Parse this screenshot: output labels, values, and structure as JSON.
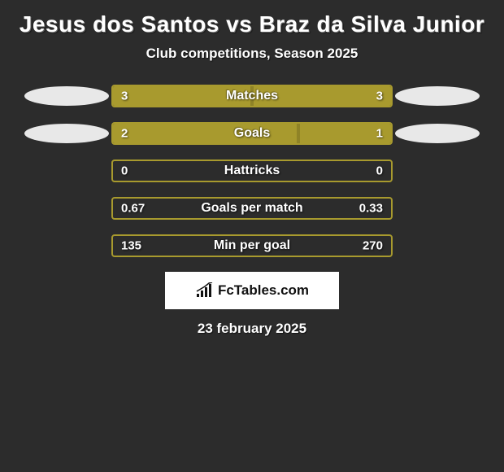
{
  "title": "Jesus dos Santos vs Braz da Silva Junior",
  "subtitle": "Club competitions, Season 2025",
  "footer_date": "23 february 2025",
  "logo_text": "FcTables.com",
  "colors": {
    "background": "#2c2c2c",
    "bar_border": "#a89a2e",
    "bar_fill": "#a89a2e",
    "avatar": "#e8e8e8",
    "text": "#ffffff",
    "logo_bg": "#ffffff",
    "logo_text": "#111111"
  },
  "stats": [
    {
      "label": "Matches",
      "left_value": "3",
      "right_value": "3",
      "left_pct": 50,
      "right_pct": 50,
      "show_left_avatar": true,
      "show_right_avatar": true
    },
    {
      "label": "Goals",
      "left_value": "2",
      "right_value": "1",
      "left_pct": 66.7,
      "right_pct": 33.3,
      "show_left_avatar": true,
      "show_right_avatar": true
    },
    {
      "label": "Hattricks",
      "left_value": "0",
      "right_value": "0",
      "left_pct": 0,
      "right_pct": 0,
      "show_left_avatar": false,
      "show_right_avatar": false
    },
    {
      "label": "Goals per match",
      "left_value": "0.67",
      "right_value": "0.33",
      "left_pct": 0,
      "right_pct": 0,
      "show_left_avatar": false,
      "show_right_avatar": false
    },
    {
      "label": "Min per goal",
      "left_value": "135",
      "right_value": "270",
      "left_pct": 0,
      "right_pct": 0,
      "show_left_avatar": false,
      "show_right_avatar": false
    }
  ]
}
